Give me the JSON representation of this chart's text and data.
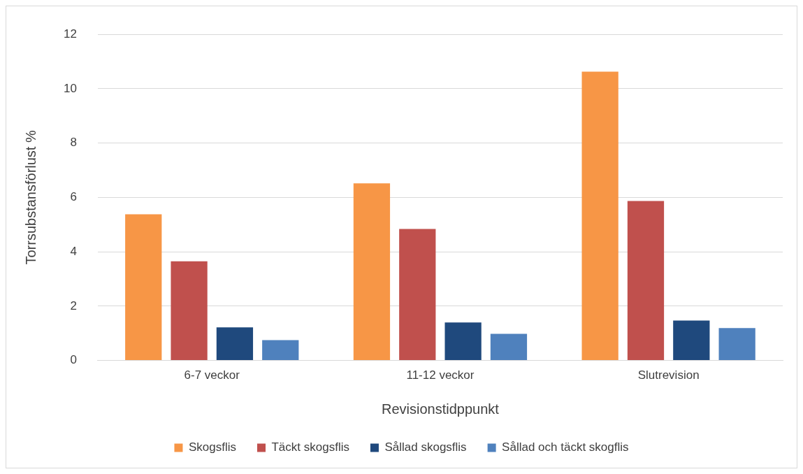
{
  "chart_data": {
    "type": "bar",
    "xlabel": "Revisionstidppunkt",
    "ylabel": "Torrsubstansförlust %",
    "categories": [
      "6-7 veckor",
      "11-12 veckor",
      "Slutrevision"
    ],
    "series": [
      {
        "name": "Skogsflis",
        "color": "#f79646",
        "values": [
          5.38,
          6.52,
          10.63
        ]
      },
      {
        "name": "Täckt skogsflis",
        "color": "#c0504d",
        "values": [
          3.65,
          4.84,
          5.87
        ]
      },
      {
        "name": "Sållad skogsflis",
        "color": "#1f497d",
        "values": [
          1.22,
          1.4,
          1.47
        ]
      },
      {
        "name": "Sållad och täckt skogflis",
        "color": "#4f81bd",
        "values": [
          0.75,
          0.98,
          1.19
        ]
      }
    ],
    "ylim": [
      0,
      12
    ],
    "yticks": [
      0,
      2,
      4,
      6,
      8,
      10,
      12
    ],
    "grid": "y",
    "legend": "bottom"
  }
}
